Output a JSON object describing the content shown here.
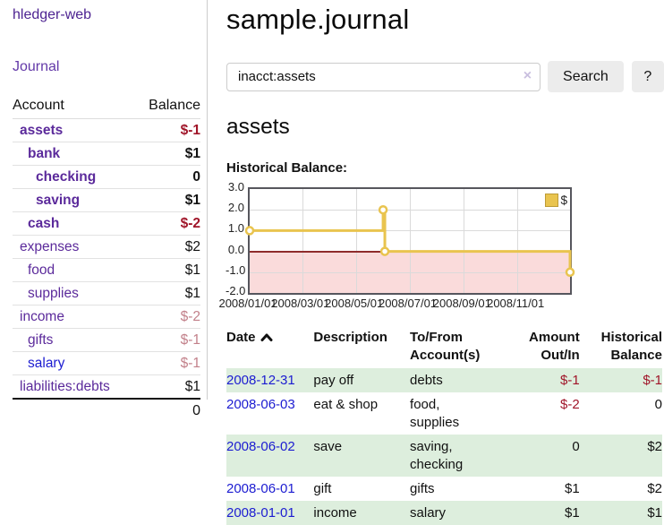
{
  "app": {
    "title": "hledger-web"
  },
  "sidebar": {
    "journal_link": "Journal",
    "accounts": {
      "header_account": "Account",
      "header_balance": "Balance",
      "rows": [
        {
          "account": "assets",
          "balance": "$-1",
          "depth": 0,
          "bold": true,
          "balance_style": "neg-strong",
          "link_color": "purple"
        },
        {
          "account": "bank",
          "balance": "$1",
          "depth": 1,
          "bold": true,
          "balance_style": "normal",
          "link_color": "purple"
        },
        {
          "account": "checking",
          "balance": "0",
          "depth": 2,
          "bold": true,
          "balance_style": "normal",
          "link_color": "purple"
        },
        {
          "account": "saving",
          "balance": "$1",
          "depth": 2,
          "bold": true,
          "balance_style": "normal",
          "link_color": "purple"
        },
        {
          "account": "cash",
          "balance": "$-2",
          "depth": 1,
          "bold": true,
          "balance_style": "neg-strong",
          "link_color": "purple"
        },
        {
          "account": "expenses",
          "balance": "$2",
          "depth": 0,
          "bold": false,
          "balance_style": "normal",
          "link_color": "purple"
        },
        {
          "account": "food",
          "balance": "$1",
          "depth": 1,
          "bold": false,
          "balance_style": "normal",
          "link_color": "purple"
        },
        {
          "account": "supplies",
          "balance": "$1",
          "depth": 1,
          "bold": false,
          "balance_style": "normal",
          "link_color": "purple"
        },
        {
          "account": "income",
          "balance": "$-2",
          "depth": 0,
          "bold": false,
          "balance_style": "neg-muted",
          "link_color": "purple"
        },
        {
          "account": "gifts",
          "balance": "$-1",
          "depth": 1,
          "bold": false,
          "balance_style": "neg-muted",
          "link_color": "purple"
        },
        {
          "account": "salary",
          "balance": "$-1",
          "depth": 1,
          "bold": false,
          "balance_style": "neg-muted",
          "link_color": "blue"
        },
        {
          "account": "liabilities:debts",
          "balance": "$1",
          "depth": 0,
          "bold": false,
          "balance_style": "normal",
          "link_color": "purple"
        }
      ],
      "total": "0"
    }
  },
  "header": {
    "title": "sample.journal"
  },
  "search": {
    "value": "inacct:assets",
    "clear_icon": "×",
    "button_label": "Search",
    "help_label": "?"
  },
  "account_page": {
    "heading": "assets",
    "chart_label": "Historical Balance:"
  },
  "chart_data": {
    "type": "line",
    "title": "Historical Balance",
    "step": true,
    "series": [
      {
        "name": "$",
        "points": [
          {
            "date": "2008-01-01",
            "value": 1
          },
          {
            "date": "2008-06-01",
            "value": 2
          },
          {
            "date": "2008-06-03",
            "value": 0
          },
          {
            "date": "2008-12-31",
            "value": -1
          }
        ]
      }
    ],
    "x_domain": [
      "2008-01-01",
      "2008-12-31"
    ],
    "ylim": [
      -2,
      3
    ],
    "yticks": [
      3.0,
      2.0,
      1.0,
      0.0,
      -1.0,
      -2.0
    ],
    "xticks": [
      "2008/01/01",
      "2008/03/01",
      "2008/05/01",
      "2008/07/01",
      "2008/09/01",
      "2008/11/01"
    ],
    "legend": "$",
    "legend_position": "top-right",
    "grid": true,
    "line_color": "#e9c44f",
    "marker_fill": "#ffffff",
    "negative_region_color": "#fadbdb",
    "zero_line_color": "#8f2b2b"
  },
  "transactions": {
    "columns": [
      {
        "label": "Date",
        "sorted": "asc"
      },
      {
        "label": "Description"
      },
      {
        "label": "To/From Account(s)"
      },
      {
        "label": "Amount Out/In",
        "align": "right"
      },
      {
        "label": "Historical Balance",
        "align": "right"
      }
    ],
    "rows": [
      {
        "date": "2008-12-31",
        "description": "pay off",
        "accounts": "debts",
        "amount": "$-1",
        "amount_negative": true,
        "balance": "$-1",
        "balance_negative": true
      },
      {
        "date": "2008-06-03",
        "description": "eat & shop",
        "accounts": "food, supplies",
        "amount": "$-2",
        "amount_negative": true,
        "balance": "0",
        "balance_negative": false
      },
      {
        "date": "2008-06-02",
        "description": "save",
        "accounts": "saving, checking",
        "amount": "0",
        "amount_negative": false,
        "balance": "$2",
        "balance_negative": false
      },
      {
        "date": "2008-06-01",
        "description": "gift",
        "accounts": "gifts",
        "amount": "$1",
        "amount_negative": false,
        "balance": "$2",
        "balance_negative": false
      },
      {
        "date": "2008-01-01",
        "description": "income",
        "accounts": "salary",
        "amount": "$1",
        "amount_negative": false,
        "balance": "$1",
        "balance_negative": false
      }
    ]
  },
  "colors": {
    "accent_purple": "#5b2a9b",
    "link_blue": "#1c1cd1",
    "negative_strong": "#a01529",
    "negative_muted": "#c2808a",
    "row_stripe_green": "#ddeedd",
    "chart_line_gold": "#e9c44f",
    "chart_negative_pink": "#fadbdb",
    "chart_zero_line": "#8f2b2b"
  }
}
